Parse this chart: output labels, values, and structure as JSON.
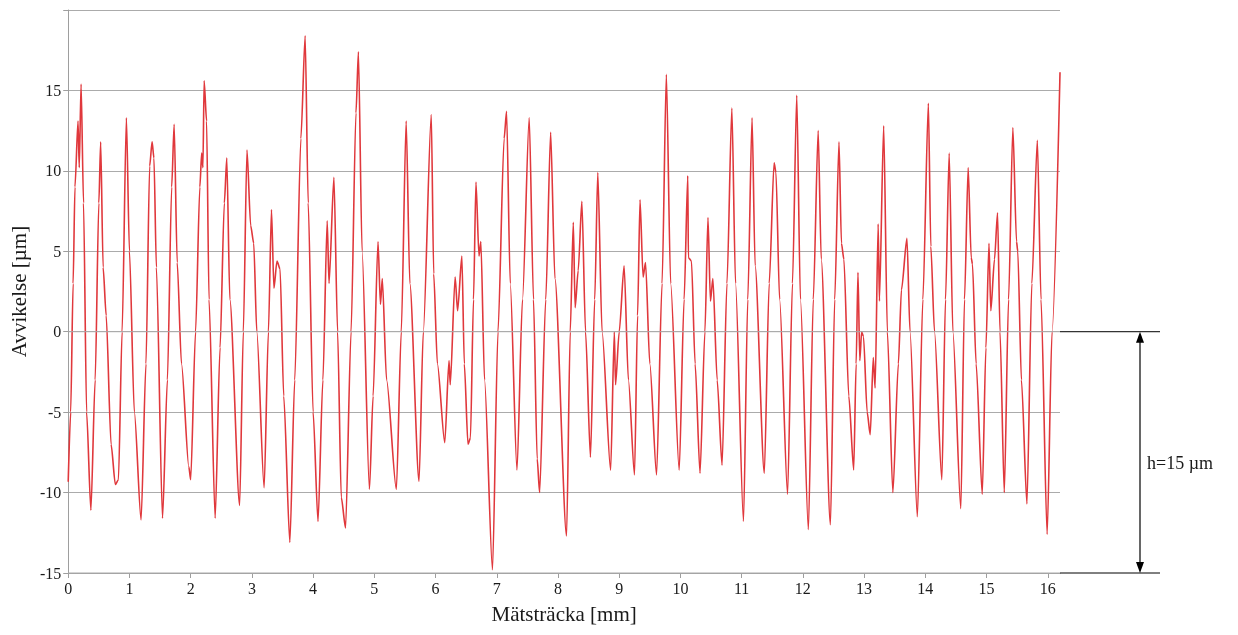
{
  "chart_data": {
    "type": "line",
    "xlabel": "Mätsträcka [mm]",
    "ylabel": "Avvikelse [µm]",
    "x": [
      0,
      0.04,
      0.08,
      0.11,
      0.16,
      0.18,
      0.21,
      0.25,
      0.3,
      0.37,
      0.44,
      0.5,
      0.53,
      0.57,
      0.62,
      0.7,
      0.77,
      0.82,
      0.88,
      0.95,
      1,
      1.08,
      1.19,
      1.27,
      1.33,
      1.37,
      1.4,
      1.44,
      1.54,
      1.62,
      1.69,
      1.73,
      1.78,
      1.85,
      1.97,
      2,
      2.08,
      2.15,
      2.18,
      2.2,
      2.22,
      2.26,
      2.3,
      2.4,
      2.48,
      2.55,
      2.59,
      2.64,
      2.8,
      2.86,
      2.92,
      2.98,
      3.03,
      3.08,
      3.2,
      3.27,
      3.32,
      3.36,
      3.41,
      3.46,
      3.52,
      3.62,
      3.7,
      3.8,
      3.87,
      3.92,
      4,
      4.08,
      4.16,
      4.23,
      4.26,
      4.34,
      4.4,
      4.46,
      4.53,
      4.62,
      4.7,
      4.74,
      4.8,
      4.92,
      4.98,
      5.06,
      5.1,
      5.13,
      5.2,
      5.36,
      5.44,
      5.52,
      5.58,
      5.73,
      5.8,
      5.93,
      5.97,
      6.03,
      6.15,
      6.22,
      6.24,
      6.32,
      6.36,
      6.43,
      6.47,
      6.53,
      6.57,
      6.62,
      6.66,
      6.71,
      6.74,
      6.8,
      6.93,
      7.02,
      7.12,
      7.16,
      7.22,
      7.33,
      7.42,
      7.53,
      7.6,
      7.66,
      7.7,
      7.8,
      7.88,
      7.95,
      8.14,
      8.2,
      8.25,
      8.28,
      8.33,
      8.39,
      8.45,
      8.53,
      8.6,
      8.65,
      8.72,
      8.86,
      8.92,
      8.94,
      9,
      9.08,
      9.15,
      9.25,
      9.3,
      9.34,
      9.39,
      9.43,
      9.5,
      9.61,
      9.7,
      9.77,
      9.84,
      9.98,
      10.06,
      10.12,
      10.13,
      10.18,
      10.24,
      10.32,
      10.4,
      10.45,
      10.49,
      10.53,
      10.6,
      10.68,
      10.76,
      10.84,
      10.9,
      11.03,
      11.1,
      11.17,
      11.22,
      11.37,
      11.45,
      11.53,
      11.56,
      11.62,
      11.75,
      11.83,
      11.9,
      11.96,
      12.09,
      12.17,
      12.25,
      12.3,
      12.45,
      12.52,
      12.59,
      12.63,
      12.67,
      12.75,
      12.83,
      12.87,
      12.9,
      12.93,
      12.96,
      12.99,
      13.05,
      13.1,
      13.15,
      13.18,
      13.23,
      13.25,
      13.32,
      13.38,
      13.47,
      13.56,
      13.61,
      13.7,
      13.75,
      13.87,
      13.96,
      14.05,
      14.09,
      14.15,
      14.27,
      14.33,
      14.39,
      14.45,
      14.58,
      14.64,
      14.7,
      14.75,
      14.77,
      14.83,
      14.93,
      14.99,
      15.04,
      15.07,
      15.13,
      15.18,
      15.22,
      15.29,
      15.36,
      15.43,
      15.49,
      15.51,
      15.57,
      15.66,
      15.74,
      15.83,
      15.89,
      15.99,
      16.07,
      16.2
    ],
    "values": [
      -9.3,
      -5,
      3,
      9,
      13.1,
      10.2,
      15.4,
      8,
      -5,
      -11.1,
      -3,
      8,
      11.8,
      4,
      1,
      -7,
      -9.5,
      -9.2,
      0,
      13.3,
      5,
      -5,
      -11.7,
      -2,
      10.3,
      11.8,
      10.8,
      4,
      -11.6,
      -3,
      9,
      12.9,
      4.3,
      -2,
      -8.4,
      -9.2,
      0,
      9,
      11.1,
      10.2,
      15.6,
      13.1,
      2,
      -11.6,
      -1,
      8,
      10.8,
      2,
      -10.8,
      0,
      11.3,
      6.6,
      5.5,
      0,
      -9.7,
      0,
      7.6,
      2.7,
      4.4,
      3.9,
      -4,
      -13.1,
      -3,
      12,
      18.4,
      8,
      -5,
      -11.8,
      -3,
      6.9,
      3,
      9.6,
      0,
      -10.3,
      -12.2,
      0,
      13.6,
      17.4,
      5,
      -9.8,
      -4,
      5.6,
      1.7,
      3.3,
      -3,
      -9.8,
      0,
      13.1,
      3,
      -9.3,
      0,
      13.5,
      3.6,
      -2,
      -6.9,
      -1.8,
      -3.3,
      3.4,
      1.3,
      4.7,
      -2,
      -7,
      -6.6,
      2,
      9.3,
      4.7,
      5.6,
      -3,
      -14.8,
      0,
      12,
      13.7,
      3,
      -8.6,
      2,
      13.3,
      2,
      -7.9,
      -10,
      2,
      12.4,
      3.3,
      -12.7,
      0,
      6.8,
      1.5,
      3.8,
      8.1,
      0,
      -7.8,
      2,
      9.9,
      0,
      -8.6,
      0,
      -3.3,
      0,
      4.1,
      -3,
      -8.9,
      1,
      8.2,
      3.4,
      4.3,
      -2,
      -8.9,
      3,
      16,
      3,
      -8.6,
      2,
      9.7,
      4.6,
      4.4,
      -2,
      -8.8,
      0,
      7.1,
      1.9,
      3.3,
      -3,
      -8.3,
      3,
      13.9,
      3,
      -11.8,
      2,
      13.3,
      4.1,
      -8.8,
      3,
      10.5,
      9.9,
      2,
      -10.1,
      3,
      14.7,
      2,
      -12.3,
      2,
      12.5,
      4.5,
      -12,
      2,
      11.8,
      5.5,
      4.5,
      -4,
      -8.6,
      -2,
      3.7,
      -1.8,
      0,
      -0.3,
      -5,
      -6.4,
      -1.6,
      -3.5,
      6.7,
      1.9,
      12.8,
      0,
      -10,
      -2,
      2.6,
      5.8,
      0,
      -11.5,
      2,
      14.2,
      5.3,
      0,
      -9.2,
      2,
      11.1,
      0,
      -11,
      2,
      10.2,
      4.6,
      4.2,
      -2,
      -10.1,
      -1,
      5.5,
      1.3,
      4.5,
      7.4,
      0,
      -10,
      2,
      12.7,
      5.6,
      5,
      -3,
      -10.7,
      3,
      11.9,
      2,
      -12.6,
      0,
      16.1
    ],
    "color": "#e0383c",
    "xlim": [
      0,
      16.2
    ],
    "xticks": [
      0,
      1,
      2,
      3,
      4,
      5,
      6,
      7,
      8,
      9,
      10,
      11,
      12,
      13,
      14,
      15,
      16
    ],
    "ylim": [
      -15,
      20
    ],
    "yticks": [
      -15,
      -10,
      -5,
      0,
      5,
      10,
      15,
      {
        "value": 20,
        "label": null
      }
    ],
    "grid": "y",
    "marker": "none",
    "line_style": "solid",
    "ref_lines": [
      {
        "axis": "y",
        "value": 0,
        "color": "#000000"
      },
      {
        "axis": "y",
        "value": -15,
        "color": "#000000"
      }
    ],
    "annotations": [
      "h=15 µm"
    ]
  }
}
